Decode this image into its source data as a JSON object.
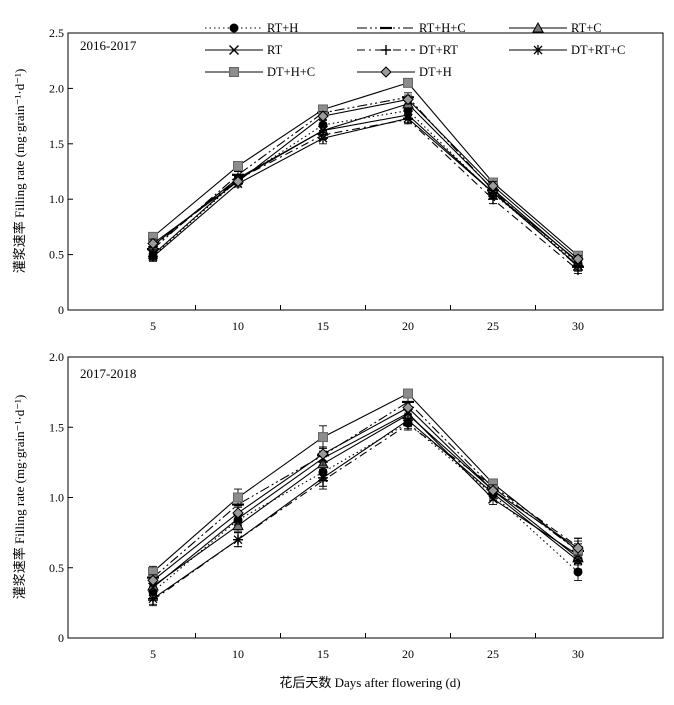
{
  "chart_data": [
    {
      "type": "line",
      "title": "2016-2017",
      "ylabel": "灌浆速率 Filling rate (mg·grain⁻¹·d⁻¹)",
      "xlabel": "",
      "x": [
        5,
        10,
        15,
        20,
        25,
        30
      ],
      "xlim": [
        0,
        35
      ],
      "ylim": [
        0,
        2.5
      ],
      "yticks": [
        "0",
        "0.5",
        "1.0",
        "1.5",
        "2.0",
        "2.5"
      ],
      "legend_position": "top",
      "series": [
        {
          "name": "RT+H",
          "values": [
            0.49,
            1.17,
            1.67,
            1.8,
            1.05,
            0.42
          ],
          "err": [
            0.04,
            0.03,
            0.05,
            0.05,
            0.04,
            0.04
          ]
        },
        {
          "name": "RT+H+C",
          "values": [
            0.55,
            1.22,
            1.78,
            1.92,
            1.08,
            0.39
          ],
          "err": [
            0.04,
            0.03,
            0.04,
            0.04,
            0.04,
            0.04
          ]
        },
        {
          "name": "RT+C",
          "values": [
            0.58,
            1.19,
            1.62,
            1.86,
            1.09,
            0.43
          ],
          "err": [
            0.04,
            0.03,
            0.04,
            0.04,
            0.04,
            0.03
          ]
        },
        {
          "name": "RT",
          "values": [
            0.5,
            1.18,
            1.62,
            1.76,
            1.06,
            0.44
          ],
          "err": [
            0.04,
            0.03,
            0.04,
            0.04,
            0.04,
            0.04
          ]
        },
        {
          "name": "DT+RT",
          "values": [
            0.57,
            1.18,
            1.58,
            1.72,
            1.0,
            0.36
          ],
          "err": [
            0.04,
            0.03,
            0.04,
            0.04,
            0.04,
            0.03
          ]
        },
        {
          "name": "DT+RT+C",
          "values": [
            0.48,
            1.14,
            1.55,
            1.73,
            1.06,
            0.4
          ],
          "err": [
            0.04,
            0.03,
            0.05,
            0.04,
            0.04,
            0.04
          ]
        },
        {
          "name": "DT+H+C",
          "values": [
            0.66,
            1.3,
            1.81,
            2.05,
            1.15,
            0.49
          ],
          "err": [
            0.04,
            0.03,
            0.03,
            0.03,
            0.03,
            0.03
          ]
        },
        {
          "name": "DT+H",
          "values": [
            0.6,
            1.16,
            1.75,
            1.9,
            1.12,
            0.46
          ],
          "err": [
            0.04,
            0.03,
            0.04,
            0.04,
            0.04,
            0.03
          ]
        }
      ]
    },
    {
      "type": "line",
      "title": "2017-2018",
      "ylabel": "灌浆速率 Filling rate (mg·grain⁻¹·d⁻¹)",
      "xlabel": "花后天数 Days after flowering (d)",
      "x": [
        5,
        10,
        15,
        20,
        25,
        30
      ],
      "xlim": [
        0,
        35
      ],
      "ylim": [
        0,
        2.0
      ],
      "yticks": [
        "0",
        "0.5",
        "1.0",
        "1.5",
        "2.0"
      ],
      "series": [
        {
          "name": "RT+H",
          "values": [
            0.33,
            0.84,
            1.18,
            1.53,
            1.02,
            0.47
          ],
          "err": [
            0.04,
            0.04,
            0.05,
            0.04,
            0.04,
            0.06
          ]
        },
        {
          "name": "RT+H+C",
          "values": [
            0.43,
            0.95,
            1.3,
            1.68,
            1.07,
            0.62
          ],
          "err": [
            0.04,
            0.05,
            0.05,
            0.04,
            0.04,
            0.05
          ]
        },
        {
          "name": "RT+C",
          "values": [
            0.37,
            0.8,
            1.24,
            1.59,
            1.05,
            0.57
          ],
          "err": [
            0.04,
            0.04,
            0.05,
            0.04,
            0.04,
            0.05
          ]
        },
        {
          "name": "RT",
          "values": [
            0.36,
            0.85,
            1.28,
            1.6,
            0.99,
            0.59
          ],
          "err": [
            0.04,
            0.04,
            0.05,
            0.04,
            0.04,
            0.05
          ]
        },
        {
          "name": "DT+RT",
          "values": [
            0.27,
            0.7,
            1.12,
            1.52,
            1.08,
            0.65
          ],
          "err": [
            0.04,
            0.05,
            0.06,
            0.04,
            0.04,
            0.06
          ]
        },
        {
          "name": "DT+RT+C",
          "values": [
            0.28,
            0.7,
            1.14,
            1.55,
            1.03,
            0.55
          ],
          "err": [
            0.04,
            0.05,
            0.06,
            0.04,
            0.04,
            0.06
          ]
        },
        {
          "name": "DT+H+C",
          "values": [
            0.47,
            1.0,
            1.43,
            1.74,
            1.1,
            0.62
          ],
          "err": [
            0.04,
            0.06,
            0.08,
            0.03,
            0.03,
            0.09
          ]
        },
        {
          "name": "DT+H",
          "values": [
            0.41,
            0.89,
            1.31,
            1.64,
            1.05,
            0.64
          ],
          "err": [
            0.04,
            0.04,
            0.05,
            0.04,
            0.04,
            0.05
          ]
        }
      ]
    }
  ],
  "legend": [
    {
      "name": "RT+H",
      "dash": "1.5 3",
      "marker": "circle",
      "fill": "#000000"
    },
    {
      "name": "RT+H+C",
      "dash": "10 3 2 3 2 3",
      "marker": "dash",
      "fill": "#000000"
    },
    {
      "name": "RT+C",
      "dash": "",
      "marker": "triangle",
      "fill": "#777777"
    },
    {
      "name": "RT",
      "dash": "",
      "marker": "x",
      "fill": "none"
    },
    {
      "name": "DT+RT",
      "dash": "8 4 2 4",
      "marker": "plus",
      "fill": "none"
    },
    {
      "name": "DT+RT+C",
      "dash": "",
      "marker": "star",
      "fill": "none"
    },
    {
      "name": "DT+H+C",
      "dash": "",
      "marker": "square",
      "fill": "#8c8c8c"
    },
    {
      "name": "DT+H",
      "dash": "",
      "marker": "diamond",
      "fill": "#9a9a9a"
    }
  ]
}
